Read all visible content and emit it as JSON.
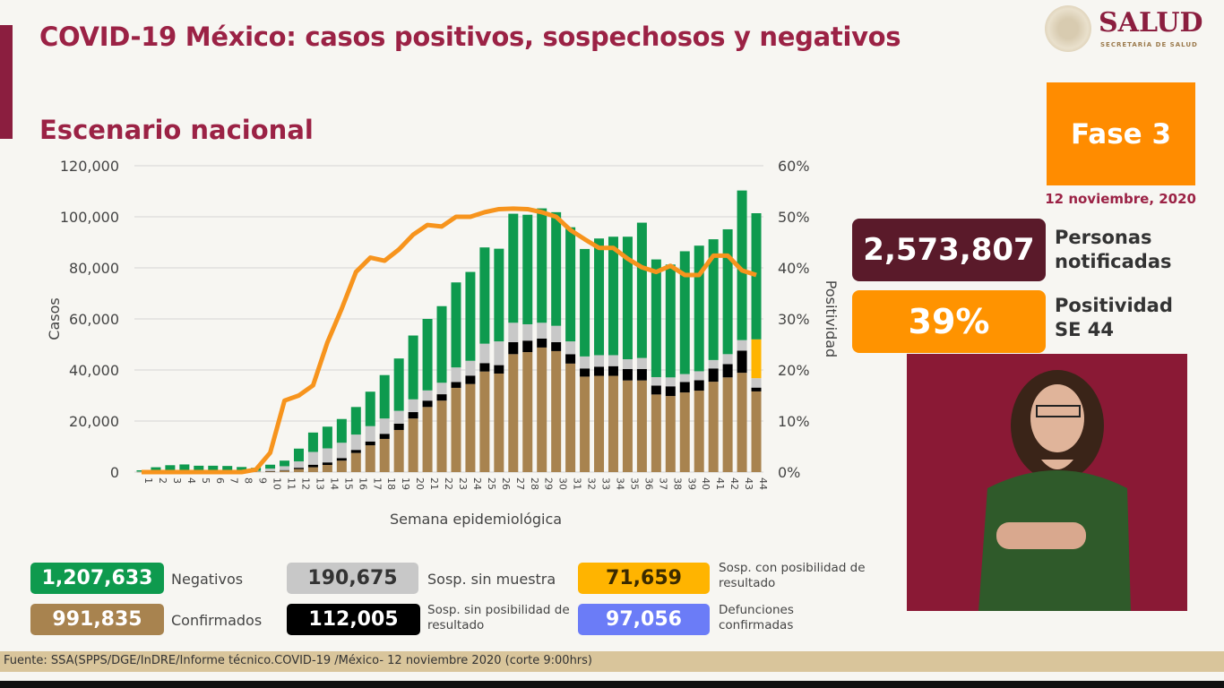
{
  "header": {
    "title": "COVID-19 México: casos positivos, sospechosos y negativos",
    "subtitle": "Escenario nacional",
    "logo_text": "SALUD",
    "logo_sub": "SECRETARÍA DE SALUD"
  },
  "side": {
    "phase": "Fase 3",
    "date": "12 noviembre, 2020",
    "notified_value": "2,573,807",
    "notified_label_1": "Personas",
    "notified_label_2": "notificadas",
    "positivity_value": "39%",
    "positivity_label_1": "Positividad",
    "positivity_label_2": "SE 44"
  },
  "legend": [
    {
      "value": "1,207,633",
      "label": "Negativos",
      "color": "#0e9a4e"
    },
    {
      "value": "991,835",
      "label": "Confirmados",
      "color": "#a8834f"
    },
    {
      "value": "190,675",
      "label": "Sosp. sin muestra",
      "color": "#c8c8c8"
    },
    {
      "value": "112,005",
      "label": "Sosp. sin posibilidad de resultado",
      "color": "#000000"
    },
    {
      "value": "71,659",
      "label": "Sosp. con posibilidad de resultado",
      "color": "#ffb400"
    },
    {
      "value": "97,056",
      "label": "Defunciones confirmadas",
      "color": "#6b7cf7"
    }
  ],
  "footer": "Fuente: SSA(SPPS/DGE/InDRE/Informe técnico.COVID-19 /México- 12 noviembre 2020 (corte 9:00hrs)",
  "chart_data": {
    "type": "bar",
    "stacked": true,
    "xlabel": "Semana epidemiológica",
    "ylabel": "Casos",
    "y2label": "Positividad",
    "ylim": [
      0,
      120000
    ],
    "y2lim": [
      0,
      60
    ],
    "yticks": [
      "0",
      "20,000",
      "40,000",
      "60,000",
      "80,000",
      "100,000",
      "120,000"
    ],
    "y2ticks": [
      "0%",
      "10%",
      "20%",
      "30%",
      "40%",
      "50%",
      "60%"
    ],
    "grid": true,
    "categories": [
      "1",
      "2",
      "3",
      "4",
      "5",
      "6",
      "7",
      "8",
      "9",
      "10",
      "11",
      "12",
      "13",
      "14",
      "15",
      "16",
      "17",
      "18",
      "19",
      "20",
      "21",
      "22",
      "23",
      "24",
      "25",
      "26",
      "27",
      "28",
      "29",
      "30",
      "31",
      "32",
      "33",
      "34",
      "35",
      "36",
      "37",
      "38",
      "39",
      "40",
      "41",
      "42",
      "43",
      "44"
    ],
    "series": [
      {
        "name": "Confirmados",
        "color": "#a8834f",
        "values": [
          100,
          0,
          0,
          0,
          0,
          0,
          0,
          100,
          200,
          300,
          600,
          1200,
          1900,
          2800,
          4500,
          7500,
          10500,
          13000,
          16500,
          21000,
          25500,
          28000,
          33000,
          34500,
          39400,
          38600,
          46200,
          47000,
          48800,
          47400,
          42500,
          37400,
          37700,
          37700,
          35900,
          35900,
          30400,
          29800,
          31200,
          31900,
          35400,
          37100,
          38900,
          31600
        ]
      },
      {
        "name": "Sosp. sin posibilidad de resultado",
        "color": "#000000",
        "values": [
          0,
          0,
          0,
          0,
          0,
          0,
          0,
          0,
          0,
          100,
          200,
          500,
          1000,
          1000,
          1000,
          1200,
          1500,
          2000,
          2500,
          2500,
          2500,
          2500,
          2300,
          3300,
          3300,
          3300,
          4700,
          4500,
          3500,
          3500,
          3700,
          3200,
          3600,
          3800,
          4500,
          4500,
          3500,
          3800,
          4100,
          4100,
          5200,
          5200,
          8700,
          1500
        ]
      },
      {
        "name": "Sosp. sin muestra",
        "color": "#c8c8c8",
        "values": [
          100,
          200,
          200,
          200,
          200,
          200,
          200,
          200,
          300,
          1000,
          1500,
          2500,
          5000,
          5500,
          6000,
          6000,
          6000,
          6000,
          5000,
          5000,
          4000,
          4500,
          5700,
          5800,
          7600,
          9300,
          7600,
          6400,
          6200,
          6400,
          5000,
          4700,
          4500,
          4300,
          3800,
          4300,
          3300,
          3500,
          3100,
          3500,
          3300,
          3900,
          4100,
          3700
        ]
      },
      {
        "name": "Sosp. con posibilidad de resultado",
        "color": "#ffb400",
        "values": [
          0,
          0,
          0,
          0,
          0,
          0,
          0,
          0,
          0,
          0,
          0,
          0,
          0,
          0,
          0,
          0,
          0,
          0,
          0,
          0,
          0,
          0,
          0,
          0,
          0,
          0,
          0,
          0,
          0,
          0,
          0,
          0,
          0,
          0,
          0,
          0,
          0,
          0,
          0,
          0,
          0,
          0,
          0,
          15200
        ]
      },
      {
        "name": "Negativos",
        "color": "#0e9a4e",
        "values": [
          500,
          1700,
          2500,
          2800,
          2300,
          2300,
          2200,
          1700,
          1200,
          1500,
          2200,
          5000,
          7600,
          8500,
          9300,
          10800,
          13500,
          17000,
          20500,
          25000,
          28000,
          30000,
          33300,
          34800,
          37700,
          36300,
          42700,
          42900,
          44800,
          44500,
          44700,
          42100,
          45700,
          46400,
          48000,
          53000,
          46100,
          44200,
          48100,
          49200,
          47300,
          48900,
          58600,
          49400
        ]
      }
    ],
    "line": {
      "name": "Positividad",
      "color": "#f7941d",
      "axis": "right",
      "values": [
        0,
        0,
        0,
        0,
        0,
        0,
        0,
        0,
        0.5,
        3.8,
        14,
        15,
        17,
        25.4,
        32,
        39.2,
        42,
        41.4,
        43.6,
        46.5,
        48.4,
        48.1,
        50,
        50,
        50.9,
        51.5,
        51.6,
        51.5,
        50.9,
        50,
        47.4,
        45.6,
        43.9,
        43.9,
        41.8,
        40.1,
        39.2,
        40.4,
        38.6,
        38.6,
        42.4,
        42.4,
        39.5,
        38.6
      ]
    }
  }
}
